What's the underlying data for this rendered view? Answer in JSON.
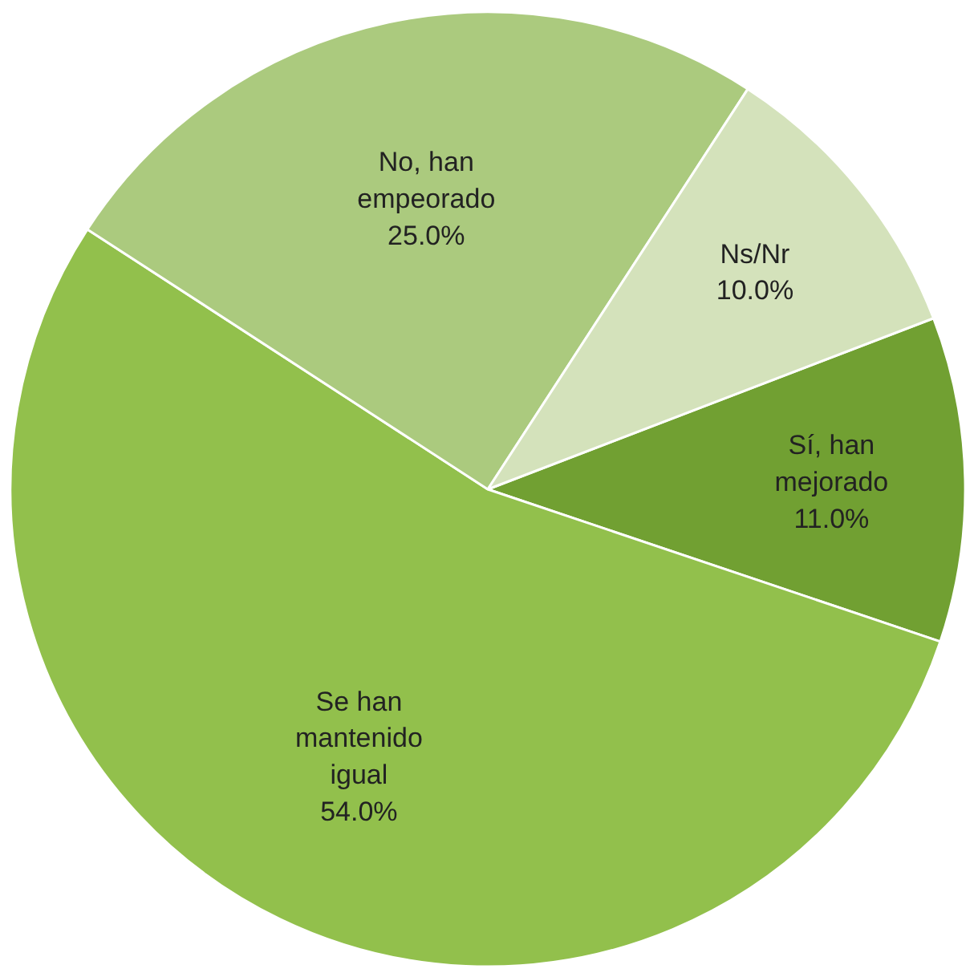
{
  "chart_data": {
    "type": "pie",
    "categories": [
      "Sí, han mejorado",
      "Se han mantenido igual",
      "No, han empeorado",
      "Ns/Nr"
    ],
    "values": [
      11.0,
      54.0,
      25.0,
      10.0
    ],
    "colors": [
      "#71a032",
      "#92c04c",
      "#abca7e",
      "#d4e2bb"
    ],
    "value_labels": [
      "11.0%",
      "54.0%",
      "25.0%",
      "10.0%"
    ]
  }
}
